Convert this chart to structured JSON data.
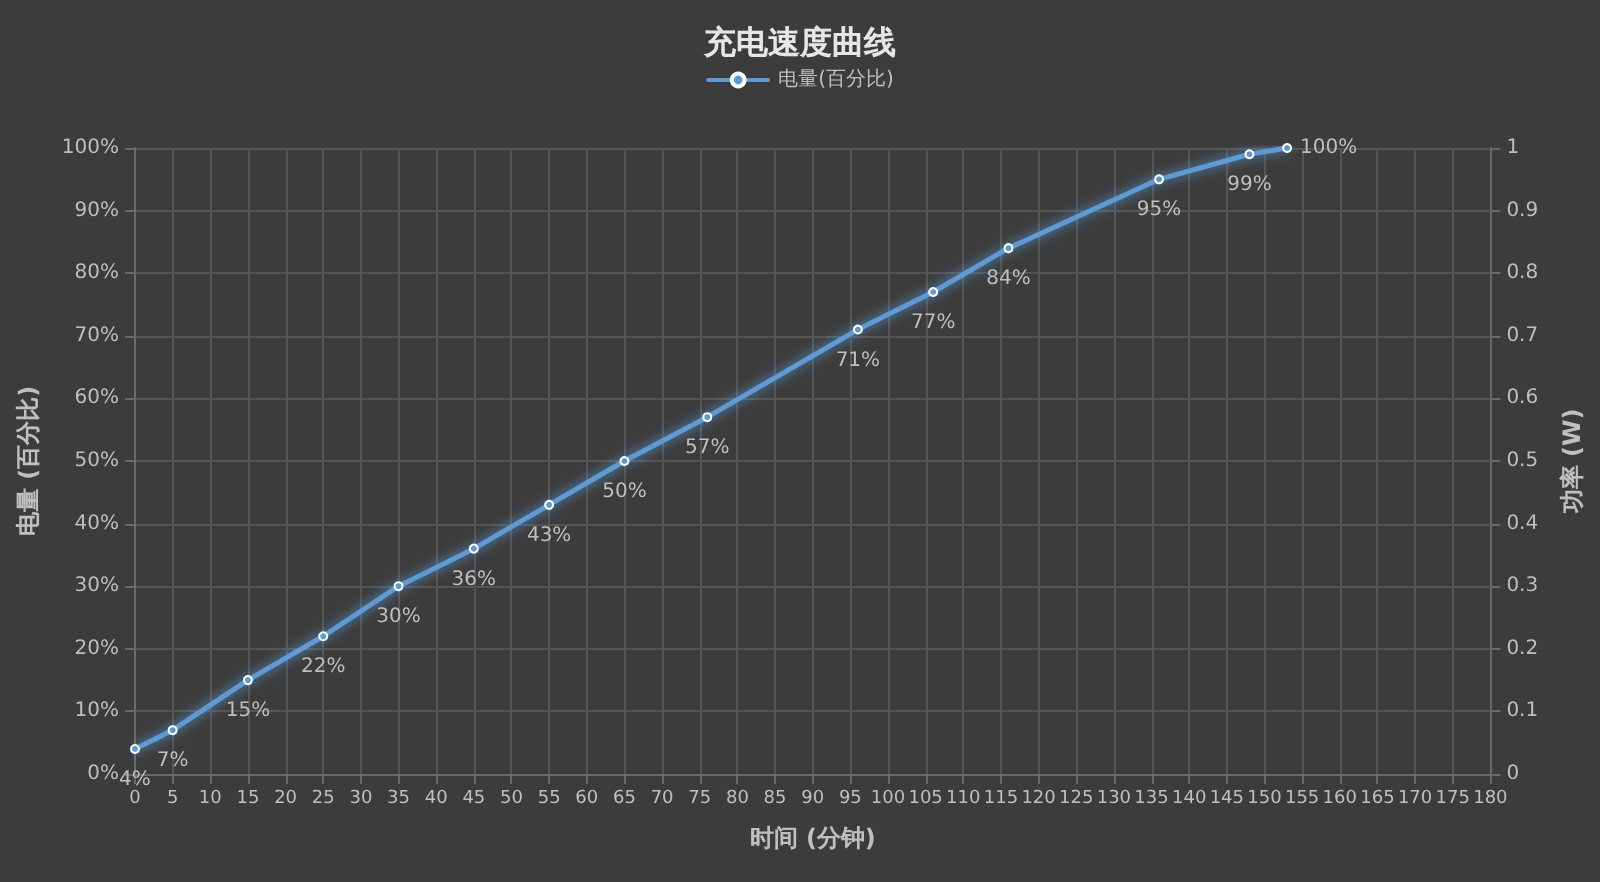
{
  "chart_data": {
    "type": "line",
    "title": "充电速度曲线",
    "xlabel": "时间 (分钟)",
    "ylabel": "电量 (百分比)",
    "y2label": "功率 (W)",
    "x": [
      0,
      5,
      15,
      25,
      35,
      45,
      55,
      65,
      76,
      96,
      106,
      116,
      136,
      148,
      153
    ],
    "series": [
      {
        "name": "电量(百分比)",
        "color": "#5b9bd5",
        "values": [
          4,
          7,
          15,
          22,
          30,
          36,
          43,
          50,
          57,
          71,
          77,
          84,
          95,
          99,
          100
        ],
        "value_labels": [
          "4%",
          "7%",
          "15%",
          "22%",
          "30%",
          "36%",
          "43%",
          "50%",
          "57%",
          "71%",
          "77%",
          "84%",
          "95%",
          "99%",
          "100%"
        ]
      }
    ],
    "xlim": [
      0,
      180
    ],
    "xticks": [
      0,
      5,
      10,
      15,
      20,
      25,
      30,
      35,
      40,
      45,
      50,
      55,
      60,
      65,
      70,
      75,
      80,
      85,
      90,
      95,
      100,
      105,
      110,
      115,
      120,
      125,
      130,
      135,
      140,
      145,
      150,
      155,
      160,
      165,
      170,
      175,
      180
    ],
    "ylim": [
      0,
      100
    ],
    "yticks": [
      {
        "value": 0,
        "label": "0%"
      },
      {
        "value": 10,
        "label": "10%"
      },
      {
        "value": 20,
        "label": "20%"
      },
      {
        "value": 30,
        "label": "30%"
      },
      {
        "value": 40,
        "label": "40%"
      },
      {
        "value": 50,
        "label": "50%"
      },
      {
        "value": 60,
        "label": "60%"
      },
      {
        "value": 70,
        "label": "70%"
      },
      {
        "value": 80,
        "label": "80%"
      },
      {
        "value": 90,
        "label": "90%"
      },
      {
        "value": 100,
        "label": "100%"
      }
    ],
    "y2lim": [
      0,
      1
    ],
    "y2ticks": [
      0,
      0.1,
      0.2,
      0.3,
      0.4,
      0.5,
      0.6,
      0.7,
      0.8,
      0.9,
      1
    ],
    "grid": true,
    "legend": "top",
    "marker": "circle",
    "line_style": "solid"
  }
}
